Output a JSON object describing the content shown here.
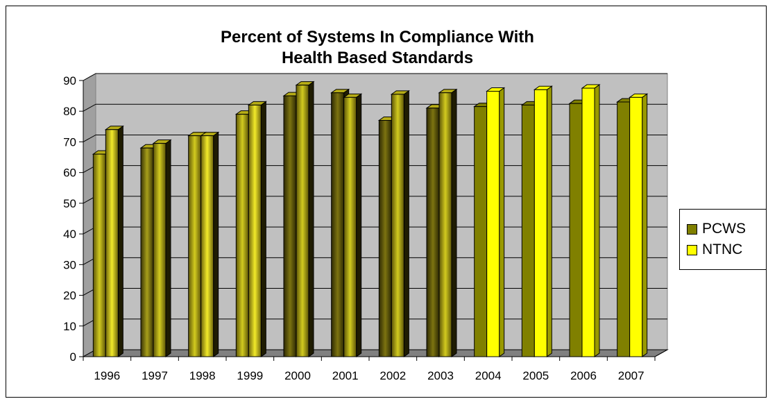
{
  "chart_data": {
    "type": "bar",
    "title": [
      "Percent of Systems In Compliance With",
      "Health Based Standards"
    ],
    "categories": [
      "1996",
      "1997",
      "1998",
      "1999",
      "2000",
      "2001",
      "2002",
      "2003",
      "2004",
      "2005",
      "2006",
      "2007"
    ],
    "series": [
      {
        "name": "PCWS",
        "values": [
          66,
          68,
          72,
          79,
          85,
          86,
          77,
          81,
          81.5,
          82,
          82.5,
          83
        ],
        "color": "#808000"
      },
      {
        "name": "NTNC",
        "values": [
          74,
          69.5,
          72,
          82,
          88.5,
          84.5,
          85.5,
          86,
          86.5,
          87,
          87.5,
          84.5
        ],
        "color": "#ffff00"
      }
    ],
    "ylim": [
      0,
      90
    ],
    "yticks": [
      0,
      10,
      20,
      30,
      40,
      50,
      60,
      70,
      80,
      90
    ],
    "grid": true,
    "legend_position": "right",
    "plot_background": "#c0c0c0",
    "floor_color": "#808080"
  }
}
